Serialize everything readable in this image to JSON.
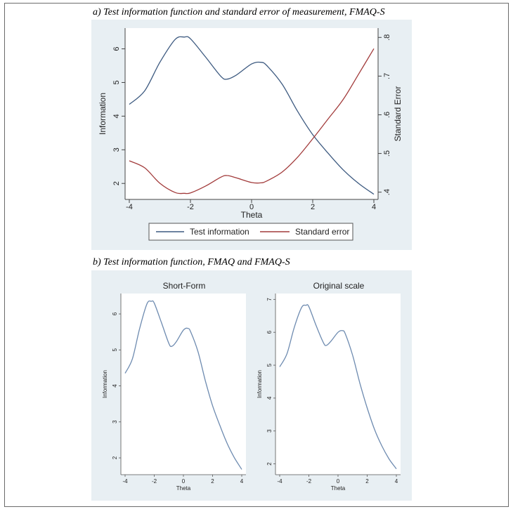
{
  "captions": {
    "a": "a)   Test information function and standard error of measurement, FMAQ-S",
    "b": "b)   Test information function, FMAQ and FMAQ-S"
  },
  "colors": {
    "panel_bg": "#e8eff3",
    "test_information": "#3d5a80",
    "standard_error": "#a23b3b",
    "small_curve": "#6e8bb0"
  },
  "chart_data": [
    {
      "type": "line",
      "title": "",
      "xlabel": "Theta",
      "ylabel": "Information",
      "y2label": "Standard Error",
      "xlim": [
        -4,
        4
      ],
      "ylim": [
        1.65,
        6.45
      ],
      "y2lim": [
        0.3921,
        0.8096
      ],
      "xticks": [
        "-4",
        "-2",
        "0",
        "2",
        "4"
      ],
      "yticks": [
        "2",
        "3",
        "4",
        "5",
        "6"
      ],
      "y2ticks": [
        ".4",
        ".5",
        ".6",
        ".7",
        ".8"
      ],
      "legend": {
        "placement": "bottom",
        "entries": [
          "Test information",
          "Standard error"
        ]
      },
      "series": [
        {
          "name": "Test information",
          "axis": "left",
          "x": [
            -4,
            -3.5,
            -3,
            -2.5,
            -2.2,
            -2,
            -1.5,
            -1,
            -0.8,
            -0.5,
            0,
            0.3,
            0.5,
            1,
            1.5,
            2,
            2.5,
            3,
            3.5,
            4
          ],
          "y": [
            4.35,
            4.75,
            5.6,
            6.28,
            6.35,
            6.3,
            5.75,
            5.18,
            5.1,
            5.22,
            5.55,
            5.6,
            5.5,
            4.95,
            4.15,
            3.45,
            2.9,
            2.4,
            2.0,
            1.68
          ]
        },
        {
          "name": "Standard error",
          "axis": "right",
          "x": [
            -4,
            -3.5,
            -3,
            -2.5,
            -2.2,
            -2,
            -1.5,
            -1,
            -0.8,
            -0.5,
            0,
            0.3,
            0.5,
            1,
            1.5,
            2,
            2.5,
            3,
            3.5,
            4
          ],
          "y": [
            0.481,
            0.463,
            0.423,
            0.399,
            0.397,
            0.398,
            0.416,
            0.439,
            0.443,
            0.437,
            0.425,
            0.424,
            0.429,
            0.452,
            0.49,
            0.538,
            0.589,
            0.64,
            0.705,
            0.771
          ]
        }
      ]
    },
    {
      "type": "line",
      "title": "Short-Form",
      "xlabel": "Theta",
      "ylabel": "Information",
      "xlim": [
        -4,
        4
      ],
      "ylim": [
        1.65,
        6.45
      ],
      "xticks": [
        "-4",
        "-2",
        "0",
        "2",
        "4"
      ],
      "yticks": [
        "2",
        "3",
        "4",
        "5",
        "6"
      ],
      "series": [
        {
          "x": [
            -4,
            -3.5,
            -3,
            -2.5,
            -2.2,
            -2,
            -1.5,
            -1,
            -0.8,
            -0.5,
            0,
            0.3,
            0.5,
            1,
            1.5,
            2,
            2.5,
            3,
            3.5,
            4
          ],
          "y": [
            4.35,
            4.75,
            5.6,
            6.28,
            6.35,
            6.3,
            5.75,
            5.18,
            5.1,
            5.22,
            5.55,
            5.6,
            5.5,
            4.95,
            4.15,
            3.45,
            2.9,
            2.4,
            2.0,
            1.68
          ]
        }
      ]
    },
    {
      "type": "line",
      "title": "Original scale",
      "xlabel": "Theta",
      "ylabel": "Information",
      "xlim": [
        -4,
        4
      ],
      "ylim": [
        1.8,
        7.05
      ],
      "xticks": [
        "-4",
        "-2",
        "0",
        "2",
        "4"
      ],
      "yticks": [
        "2",
        "3",
        "4",
        "5",
        "6",
        "7"
      ],
      "series": [
        {
          "x": [
            -4,
            -3.5,
            -3,
            -2.5,
            -2.2,
            -2,
            -1.5,
            -1,
            -0.8,
            -0.5,
            0,
            0.3,
            0.5,
            1,
            1.5,
            2,
            2.5,
            3,
            3.5,
            4
          ],
          "y": [
            4.95,
            5.35,
            6.15,
            6.75,
            6.82,
            6.78,
            6.2,
            5.68,
            5.6,
            5.72,
            6.0,
            6.05,
            5.95,
            5.3,
            4.45,
            3.7,
            3.05,
            2.55,
            2.15,
            1.85
          ]
        }
      ]
    }
  ]
}
